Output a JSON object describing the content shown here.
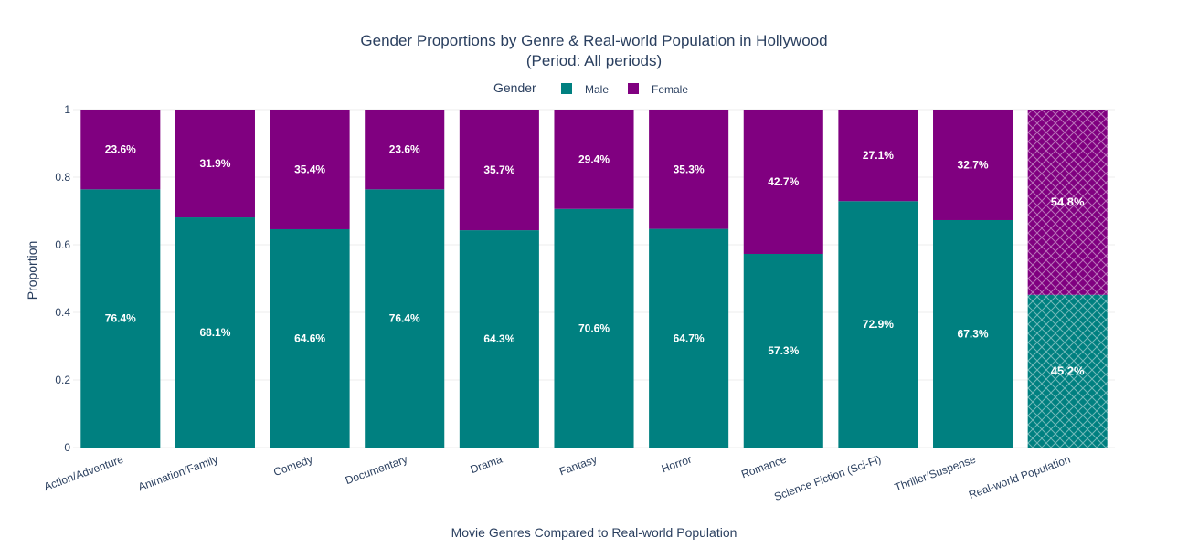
{
  "chart_data": {
    "type": "bar",
    "stacked": true,
    "title": "Gender Proportions by Genre & Real-world Population in Hollywood",
    "subtitle": "(Period: All periods)",
    "xlabel": "Movie Genres Compared to Real-world Population",
    "ylabel": "Proportion",
    "ylim": [
      0,
      1
    ],
    "yticks": [
      "0",
      "0.2",
      "0.4",
      "0.6",
      "0.8",
      "1"
    ],
    "ytick_values": [
      0,
      0.2,
      0.4,
      0.6,
      0.8,
      1
    ],
    "grid": true,
    "legend": {
      "title": "Gender",
      "placement": "top-center"
    },
    "categories": [
      "Action/Adventure",
      "Animation/Family",
      "Comedy",
      "Documentary",
      "Drama",
      "Fantasy",
      "Horror",
      "Romance",
      "Science Fiction (Sci-Fi)",
      "Thriller/Suspense",
      "Real-world Population"
    ],
    "hatched_categories": [
      "Real-world Population"
    ],
    "series": [
      {
        "name": "Male",
        "color": "#008080",
        "values": [
          0.764,
          0.681,
          0.646,
          0.764,
          0.643,
          0.706,
          0.647,
          0.573,
          0.729,
          0.673,
          0.452
        ],
        "labels": [
          "76.4%",
          "68.1%",
          "64.6%",
          "76.4%",
          "64.3%",
          "70.6%",
          "64.7%",
          "57.3%",
          "72.9%",
          "67.3%",
          "45.2%"
        ]
      },
      {
        "name": "Female",
        "color": "#800080",
        "values": [
          0.236,
          0.319,
          0.354,
          0.236,
          0.357,
          0.294,
          0.353,
          0.427,
          0.271,
          0.327,
          0.548
        ],
        "labels": [
          "23.6%",
          "31.9%",
          "35.4%",
          "23.6%",
          "35.7%",
          "29.4%",
          "35.3%",
          "42.7%",
          "27.1%",
          "32.7%",
          "54.8%"
        ]
      }
    ]
  }
}
